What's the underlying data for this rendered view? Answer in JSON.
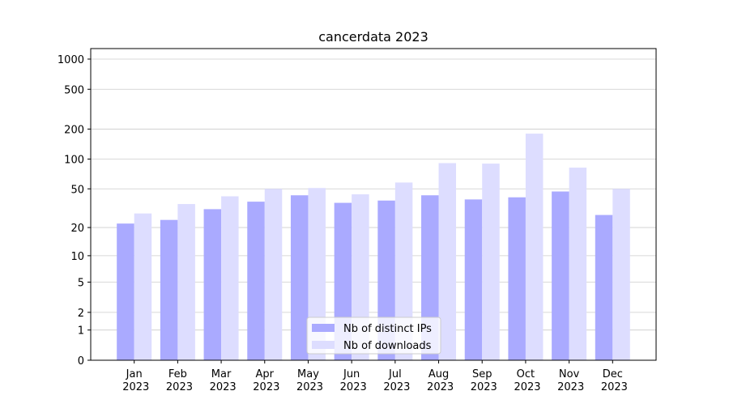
{
  "chart_data": {
    "type": "bar",
    "title": "cancerdata 2023",
    "categories": [
      "Jan 2023",
      "Feb 2023",
      "Mar 2023",
      "Apr 2023",
      "May 2023",
      "Jun 2023",
      "Jul 2023",
      "Aug 2023",
      "Sep 2023",
      "Oct 2023",
      "Nov 2023",
      "Dec 2023"
    ],
    "series": [
      {
        "name": "Nb of distinct IPs",
        "color": "#aaaaff",
        "values": [
          22,
          24,
          31,
          37,
          43,
          36,
          38,
          43,
          39,
          41,
          47,
          27
        ]
      },
      {
        "name": "Nb of downloads",
        "color": "#ddddff",
        "values": [
          28,
          35,
          42,
          50,
          51,
          44,
          58,
          91,
          90,
          180,
          82,
          50
        ]
      }
    ],
    "yscale": "symlog",
    "ylim": [
      0,
      1273
    ],
    "yticks": [
      0,
      1,
      2,
      5,
      10,
      20,
      50,
      100,
      200,
      500,
      1000
    ],
    "grid": true,
    "legend": "lower center"
  }
}
